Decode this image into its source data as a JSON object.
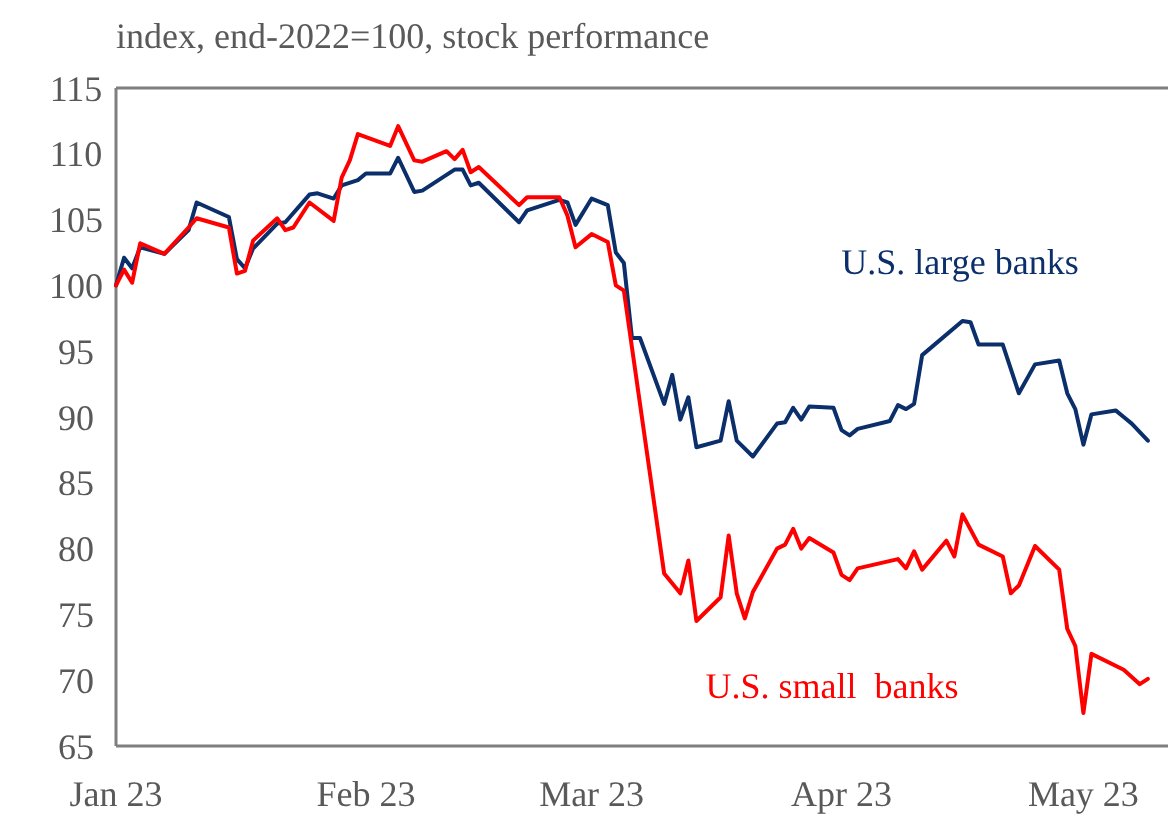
{
  "chart_data": {
    "type": "line",
    "title": "index, end-2022=100, stock performance",
    "xlim": [
      "2023-01-01",
      "2023-05-11"
    ],
    "xticks": [
      {
        "value": "2023-01-01",
        "label": "Jan 23"
      },
      {
        "value": "2023-02-01",
        "label": "Feb 23"
      },
      {
        "value": "2023-03-01",
        "label": "Mar 23"
      },
      {
        "value": "2023-04-01",
        "label": "Apr 23"
      },
      {
        "value": "2023-05-01",
        "label": "May 23"
      }
    ],
    "ylim": [
      65,
      115
    ],
    "yticks": [
      65,
      70,
      75,
      80,
      85,
      90,
      95,
      100,
      105,
      110,
      115
    ],
    "grid": false,
    "legend": false,
    "marker": "none",
    "line_style": "solid",
    "series": [
      {
        "name": "U.S. large banks",
        "color": "#0b2f6b",
        "x": [
          "2023-01-01",
          "2023-01-02",
          "2023-01-03",
          "2023-01-04",
          "2023-01-07",
          "2023-01-10",
          "2023-01-11",
          "2023-01-15",
          "2023-01-16",
          "2023-01-17",
          "2023-01-18",
          "2023-01-21",
          "2023-01-22",
          "2023-01-25",
          "2023-01-26",
          "2023-01-28",
          "2023-01-29",
          "2023-01-31",
          "2023-02-01",
          "2023-02-04",
          "2023-02-05",
          "2023-02-07",
          "2023-02-08",
          "2023-02-12",
          "2023-02-13",
          "2023-02-14",
          "2023-02-15",
          "2023-02-20",
          "2023-02-21",
          "2023-02-25",
          "2023-02-26",
          "2023-02-27",
          "2023-03-01",
          "2023-03-03",
          "2023-03-04",
          "2023-03-05",
          "2023-03-06",
          "2023-03-07",
          "2023-03-10",
          "2023-03-11",
          "2023-03-12",
          "2023-03-13",
          "2023-03-14",
          "2023-03-17",
          "2023-03-18",
          "2023-03-19",
          "2023-03-21",
          "2023-03-24",
          "2023-03-25",
          "2023-03-26",
          "2023-03-27",
          "2023-03-28",
          "2023-03-31",
          "2023-04-01",
          "2023-04-02",
          "2023-04-03",
          "2023-04-07",
          "2023-04-08",
          "2023-04-09",
          "2023-04-10",
          "2023-04-11",
          "2023-04-16",
          "2023-04-17",
          "2023-04-18",
          "2023-04-21",
          "2023-04-23",
          "2023-04-25",
          "2023-04-28",
          "2023-04-29",
          "2023-04-30",
          "2023-05-01",
          "2023-05-02",
          "2023-05-05",
          "2023-05-06",
          "2023-05-07",
          "2023-05-09"
        ],
        "values": [
          100,
          102.1,
          101.3,
          102.9,
          102.4,
          104.2,
          106.3,
          105.2,
          102,
          101.3,
          102.8,
          104.7,
          104.8,
          106.9,
          107,
          106.6,
          107.6,
          108,
          108.5,
          108.5,
          109.7,
          107.1,
          107.2,
          108.8,
          108.8,
          107.6,
          107.8,
          104.8,
          105.7,
          106.5,
          106.3,
          104.6,
          106.6,
          106.1,
          102.5,
          101.7,
          96,
          96,
          91,
          93.2,
          89.8,
          91.5,
          87.7,
          88.2,
          91.2,
          88.2,
          87,
          89.5,
          89.6,
          90.7,
          89.8,
          90.8,
          90.7,
          89,
          88.6,
          89.1,
          89.7,
          90.9,
          90.6,
          91,
          94.7,
          97.3,
          97.2,
          95.5,
          95.5,
          91.8,
          94,
          94.3,
          91.8,
          90.6,
          87.9,
          90.2,
          90.5,
          90,
          89.5,
          88.2
        ]
      },
      {
        "name": "U.S. small  banks",
        "color": "#ff0000",
        "x": [
          "2023-01-01",
          "2023-01-02",
          "2023-01-03",
          "2023-01-04",
          "2023-01-07",
          "2023-01-10",
          "2023-01-11",
          "2023-01-15",
          "2023-01-16",
          "2023-01-17",
          "2023-01-18",
          "2023-01-21",
          "2023-01-22",
          "2023-01-23",
          "2023-01-25",
          "2023-01-28",
          "2023-01-29",
          "2023-01-30",
          "2023-01-31",
          "2023-02-04",
          "2023-02-05",
          "2023-02-07",
          "2023-02-08",
          "2023-02-11",
          "2023-02-12",
          "2023-02-13",
          "2023-02-14",
          "2023-02-15",
          "2023-02-20",
          "2023-02-21",
          "2023-02-25",
          "2023-02-26",
          "2023-02-27",
          "2023-03-01",
          "2023-03-03",
          "2023-03-04",
          "2023-03-05",
          "2023-03-10",
          "2023-03-12",
          "2023-03-13",
          "2023-03-14",
          "2023-03-17",
          "2023-03-18",
          "2023-03-19",
          "2023-03-20",
          "2023-03-21",
          "2023-03-24",
          "2023-03-25",
          "2023-03-26",
          "2023-03-27",
          "2023-03-28",
          "2023-03-31",
          "2023-04-01",
          "2023-04-02",
          "2023-04-03",
          "2023-04-08",
          "2023-04-09",
          "2023-04-10",
          "2023-04-11",
          "2023-04-14",
          "2023-04-15",
          "2023-04-16",
          "2023-04-18",
          "2023-04-21",
          "2023-04-22",
          "2023-04-23",
          "2023-04-25",
          "2023-04-28",
          "2023-04-29",
          "2023-04-30",
          "2023-05-01",
          "2023-05-02",
          "2023-05-06",
          "2023-05-08",
          "2023-05-09"
        ],
        "values": [
          100,
          101.2,
          100.2,
          103.2,
          102.4,
          104.4,
          105.1,
          104.4,
          100.9,
          101.1,
          103.4,
          105.1,
          104.2,
          104.4,
          106.3,
          104.9,
          108.2,
          109.5,
          111.5,
          110.6,
          112.1,
          109.5,
          109.4,
          110.2,
          109.6,
          110.3,
          108.6,
          109,
          106.1,
          106.7,
          106.7,
          105.3,
          102.9,
          103.9,
          103.3,
          100,
          99.6,
          78.1,
          76.6,
          79.1,
          74.5,
          76.3,
          81,
          76.6,
          74.7,
          76.7,
          80,
          80.3,
          81.5,
          80,
          80.8,
          79.7,
          78,
          77.6,
          78.5,
          79.2,
          78.5,
          79.8,
          78.4,
          80.6,
          79.4,
          82.6,
          80.3,
          79.4,
          76.6,
          77.2,
          80.2,
          78.4,
          73.9,
          72.6,
          67.5,
          72,
          70.8,
          69.7,
          70.1
        ]
      }
    ]
  }
}
